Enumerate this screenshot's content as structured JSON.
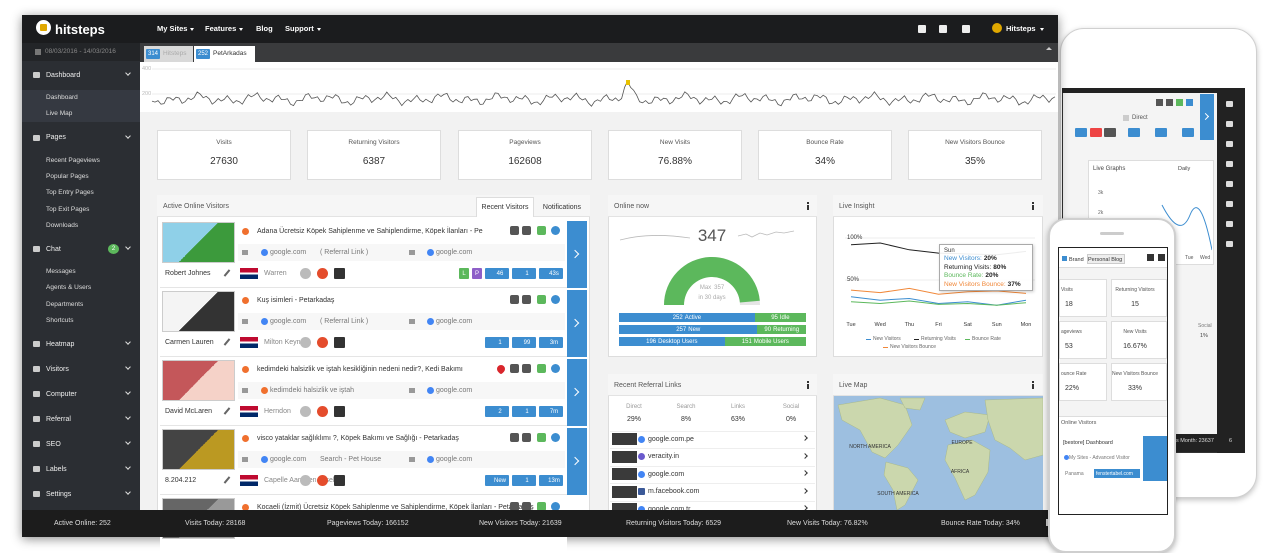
{
  "header": {
    "brand": "hitsteps",
    "nav": [
      "My Sites",
      "Features",
      "Blog",
      "Support"
    ],
    "user": "Hitsteps"
  },
  "sidebar": {
    "date_range": "08/03/2016 - 14/03/2016",
    "sections": [
      {
        "label": "Dashboard",
        "items": [
          "Dashboard",
          "Live Map"
        ]
      },
      {
        "label": "Pages",
        "items": [
          "Recent Pageviews",
          "Popular Pages",
          "Top Entry Pages",
          "Top Exit Pages",
          "Downloads"
        ]
      },
      {
        "label": "Chat",
        "badge": 2,
        "items": [
          "Messages",
          "Agents & Users",
          "Departments",
          "Shortcuts"
        ]
      },
      {
        "label": "Heatmap"
      },
      {
        "label": "Visitors"
      },
      {
        "label": "Computer"
      },
      {
        "label": "Referral"
      },
      {
        "label": "SEO"
      },
      {
        "label": "Labels"
      },
      {
        "label": "Settings"
      }
    ]
  },
  "site_tabs": [
    {
      "count": 314,
      "label": "Hitsteps"
    },
    {
      "count": 252,
      "label": "PetArkadas"
    }
  ],
  "traffic_axis": [
    400,
    200
  ],
  "stats": [
    {
      "label": "Visits",
      "value": 27630
    },
    {
      "label": "Returning Visitors",
      "value": 6387
    },
    {
      "label": "Pageviews",
      "value": 162608
    },
    {
      "label": "New Visits",
      "value": "76.88%"
    },
    {
      "label": "Bounce Rate",
      "value": "34%"
    },
    {
      "label": "New Visitors Bounce",
      "value": "35%"
    }
  ],
  "active_visitors": {
    "title": "Active Online Visitors",
    "tabs": [
      "Recent Visitors",
      "Notifications"
    ],
    "rows": [
      {
        "title": "Adana Ücretsiz Köpek Sahiplenme ve Sahiplendirme, Köpek İlanları - Pe",
        "refs": [
          "google.com",
          "( Referral Link )",
          "google.com"
        ],
        "name": "Robert Johnes",
        "location": "Warren",
        "badges": [
          {
            "text": "L",
            "color": "#5cb85c"
          },
          {
            "text": "P",
            "color": "#8e5fc8"
          },
          {
            "text": "46",
            "color": "#3c8dd0"
          },
          {
            "text": "1",
            "color": "#3c8dd0"
          },
          {
            "text": "43s",
            "color": "#3c8dd0"
          }
        ]
      },
      {
        "title": "Kuş isimleri - Petarkadaş",
        "refs": [
          "google.com",
          "( Referral Link )",
          "google.com"
        ],
        "name": "Carmen Lauren",
        "location": "Milton Keynes",
        "badges": [
          {
            "text": "1",
            "color": "#3c8dd0"
          },
          {
            "text": "99",
            "color": "#3c8dd0"
          },
          {
            "text": "3m",
            "color": "#3c8dd0"
          }
        ]
      },
      {
        "title": "kedimdeki halsizlik ve iştah kesikliğinin nedeni nedir?, Kedi Bakımı",
        "refs": [
          "kedimdeki halsizlik ve iştah",
          "google.com"
        ],
        "name": "David McLaren",
        "location": "Herndon",
        "badges": [
          {
            "text": "2",
            "color": "#3c8dd0"
          },
          {
            "text": "1",
            "color": "#3c8dd0"
          },
          {
            "text": "7m",
            "color": "#3c8dd0"
          }
        ]
      },
      {
        "title": "visco yataklar sağlıklımı ?, Köpek Bakımı ve Sağlığı - Petarkadaş",
        "refs": [
          "google.com",
          "Search - Pet House",
          "google.com"
        ],
        "name": "8.204.212",
        "location": "Capelle Aan Den Ijssel",
        "badges": [
          {
            "text": "New",
            "color": "#3c8dd0"
          },
          {
            "text": "1",
            "color": "#3c8dd0"
          },
          {
            "text": "13m",
            "color": "#3c8dd0"
          }
        ]
      },
      {
        "title": "Kocaeli (İzmit) Ücretsiz Köpek Sahiplenme ve Sahiplendirme, Köpek İlanları - Petarkadaş"
      }
    ]
  },
  "online_now": {
    "title": "Online now",
    "value": 347,
    "max_label": "Max",
    "max": 357,
    "period": "in 30 days",
    "bars": [
      [
        {
          "value": 252,
          "label": "Active"
        },
        {
          "value": 95,
          "label": "Idle"
        }
      ],
      [
        {
          "value": 257,
          "label": "New"
        },
        {
          "value": 90,
          "label": "Returning"
        }
      ],
      [
        {
          "value": 196,
          "label": "Desktop Users"
        },
        {
          "value": 151,
          "label": "Mobile Users"
        }
      ]
    ]
  },
  "live_insight": {
    "title": "Live Insight",
    "categories": [
      "Tue",
      "Wed",
      "Thu",
      "Fri",
      "Sat",
      "Sun",
      "Mon"
    ],
    "ylim": [
      0,
      100
    ],
    "yticks": [
      {
        "value": 100,
        "label": "100%"
      },
      {
        "value": 50,
        "label": "50%"
      }
    ],
    "series": [
      {
        "name": "New Visitors",
        "color": "#3c8dd0",
        "values": [
          30,
          26,
          28,
          22,
          24,
          20,
          26
        ]
      },
      {
        "name": "Returning Visits",
        "color": "#222222",
        "values": [
          92,
          94,
          86,
          82,
          81,
          80,
          84
        ]
      },
      {
        "name": "Bounce Rate",
        "color": "#5cb85c",
        "values": [
          24,
          22,
          25,
          21,
          22,
          20,
          23
        ]
      },
      {
        "name": "New Visitors Bounce",
        "color": "#f0883a",
        "values": [
          38,
          35,
          40,
          33,
          36,
          37,
          34
        ]
      }
    ],
    "tooltip": {
      "title": "Sun",
      "rows": [
        {
          "label": "New Visitors:",
          "value": "20%"
        },
        {
          "label": "Returning Visits:",
          "value": "80%"
        },
        {
          "label": "Bounce Rate:",
          "value": "20%"
        },
        {
          "label": "New Visitors Bounce:",
          "value": "37%"
        }
      ]
    }
  },
  "referral": {
    "title": "Recent Referral Links",
    "stats": [
      {
        "label": "Direct",
        "value": "29%"
      },
      {
        "label": "Search",
        "value": "8%"
      },
      {
        "label": "Links",
        "value": "63%"
      },
      {
        "label": "Social",
        "value": "0%"
      }
    ],
    "links": [
      "google.com.pe",
      "veracity.in",
      "google.com",
      "m.facebook.com",
      "google.com.tr"
    ]
  },
  "live_map": {
    "title": "Live Map",
    "labels": [
      "NORTH AMERICA",
      "EUROPE",
      "AFRICA",
      "SOUTH AMERICA"
    ]
  },
  "footer": [
    "Active Online: 252",
    "Visits Today: 28168",
    "Pageviews Today: 166152",
    "New Visitors Today: 21639",
    "Returning Visitors Today: 6529",
    "New Visits Today: 76.82%",
    "Bounce Rate Today: 34%"
  ],
  "tablet": {
    "filter": "Direct",
    "panel_title": "Live Graphs",
    "period": "Daily",
    "yticks": [
      "3k",
      "2k",
      "1k"
    ],
    "days": [
      "Tue",
      "Wed"
    ],
    "side_label": "Social",
    "side_value": "1%",
    "footer": "s Month: 23637",
    "footer_count": 6
  },
  "phone": {
    "tabs": [
      "Brand",
      "Personal Blog"
    ],
    "stats": [
      {
        "label": "Visits",
        "value": 18
      },
      {
        "label": "Returning Visitors",
        "value": 15
      },
      {
        "label": "ageviews",
        "value": 53
      },
      {
        "label": "New Visits",
        "value": "16.67%"
      },
      {
        "label": "ounce Rate",
        "value": "22%"
      },
      {
        "label": "New Visitors Bounce",
        "value": "33%"
      }
    ],
    "panel_title": "Online Visitors",
    "visitor": {
      "page": "[bestore] Dashboard",
      "ref": "My Sites - Advanced Visitor",
      "location": "Panama",
      "host": "fenstertabel.com"
    }
  }
}
